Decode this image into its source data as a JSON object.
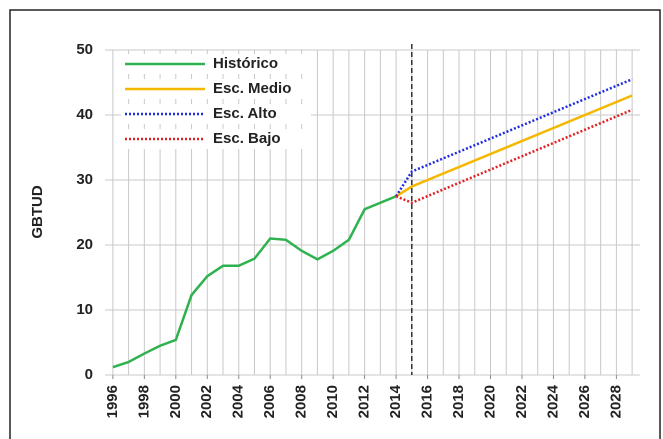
{
  "chart_data": {
    "type": "line",
    "ylabel": "GBTUD",
    "xlim": [
      1995.5,
      2029.5
    ],
    "ylim": [
      0,
      50
    ],
    "xticks": [
      1996,
      1998,
      2000,
      2002,
      2004,
      2006,
      2008,
      2010,
      2012,
      2014,
      2016,
      2018,
      2020,
      2022,
      2024,
      2026,
      2028
    ],
    "yticks": [
      0,
      10,
      20,
      30,
      40,
      50
    ],
    "grid": true,
    "xgrid_step": 1,
    "vline": 2015,
    "legend": "upper left",
    "series": [
      {
        "name": "Histórico",
        "color": "#2db24f",
        "style": "solid",
        "x": [
          1996,
          1997,
          1998,
          1999,
          2000,
          2001,
          2002,
          2003,
          2004,
          2005,
          2006,
          2007,
          2008,
          2009,
          2010,
          2011,
          2012,
          2013,
          2014
        ],
        "values": [
          1.2,
          2,
          3.3,
          4.5,
          5.4,
          12.3,
          15.2,
          16.8,
          16.8,
          17.9,
          21,
          20.8,
          19.1,
          17.8,
          19.1,
          20.8,
          25.5,
          26.5,
          27.5
        ]
      },
      {
        "name": "Esc. Medio",
        "color": "#f5b800",
        "style": "solid",
        "x": [
          2014,
          2015,
          2029
        ],
        "values": [
          27.5,
          29,
          43
        ]
      },
      {
        "name": "Esc. Alto",
        "color": "#1f2be0",
        "style": "dotted",
        "x": [
          2014,
          2015,
          2029
        ],
        "values": [
          27.5,
          31.3,
          45.5
        ]
      },
      {
        "name": "Esc. Bajo",
        "color": "#e02020",
        "style": "dotted",
        "x": [
          2014,
          2015,
          2029
        ],
        "values": [
          27.5,
          26.5,
          40.8
        ]
      }
    ]
  }
}
